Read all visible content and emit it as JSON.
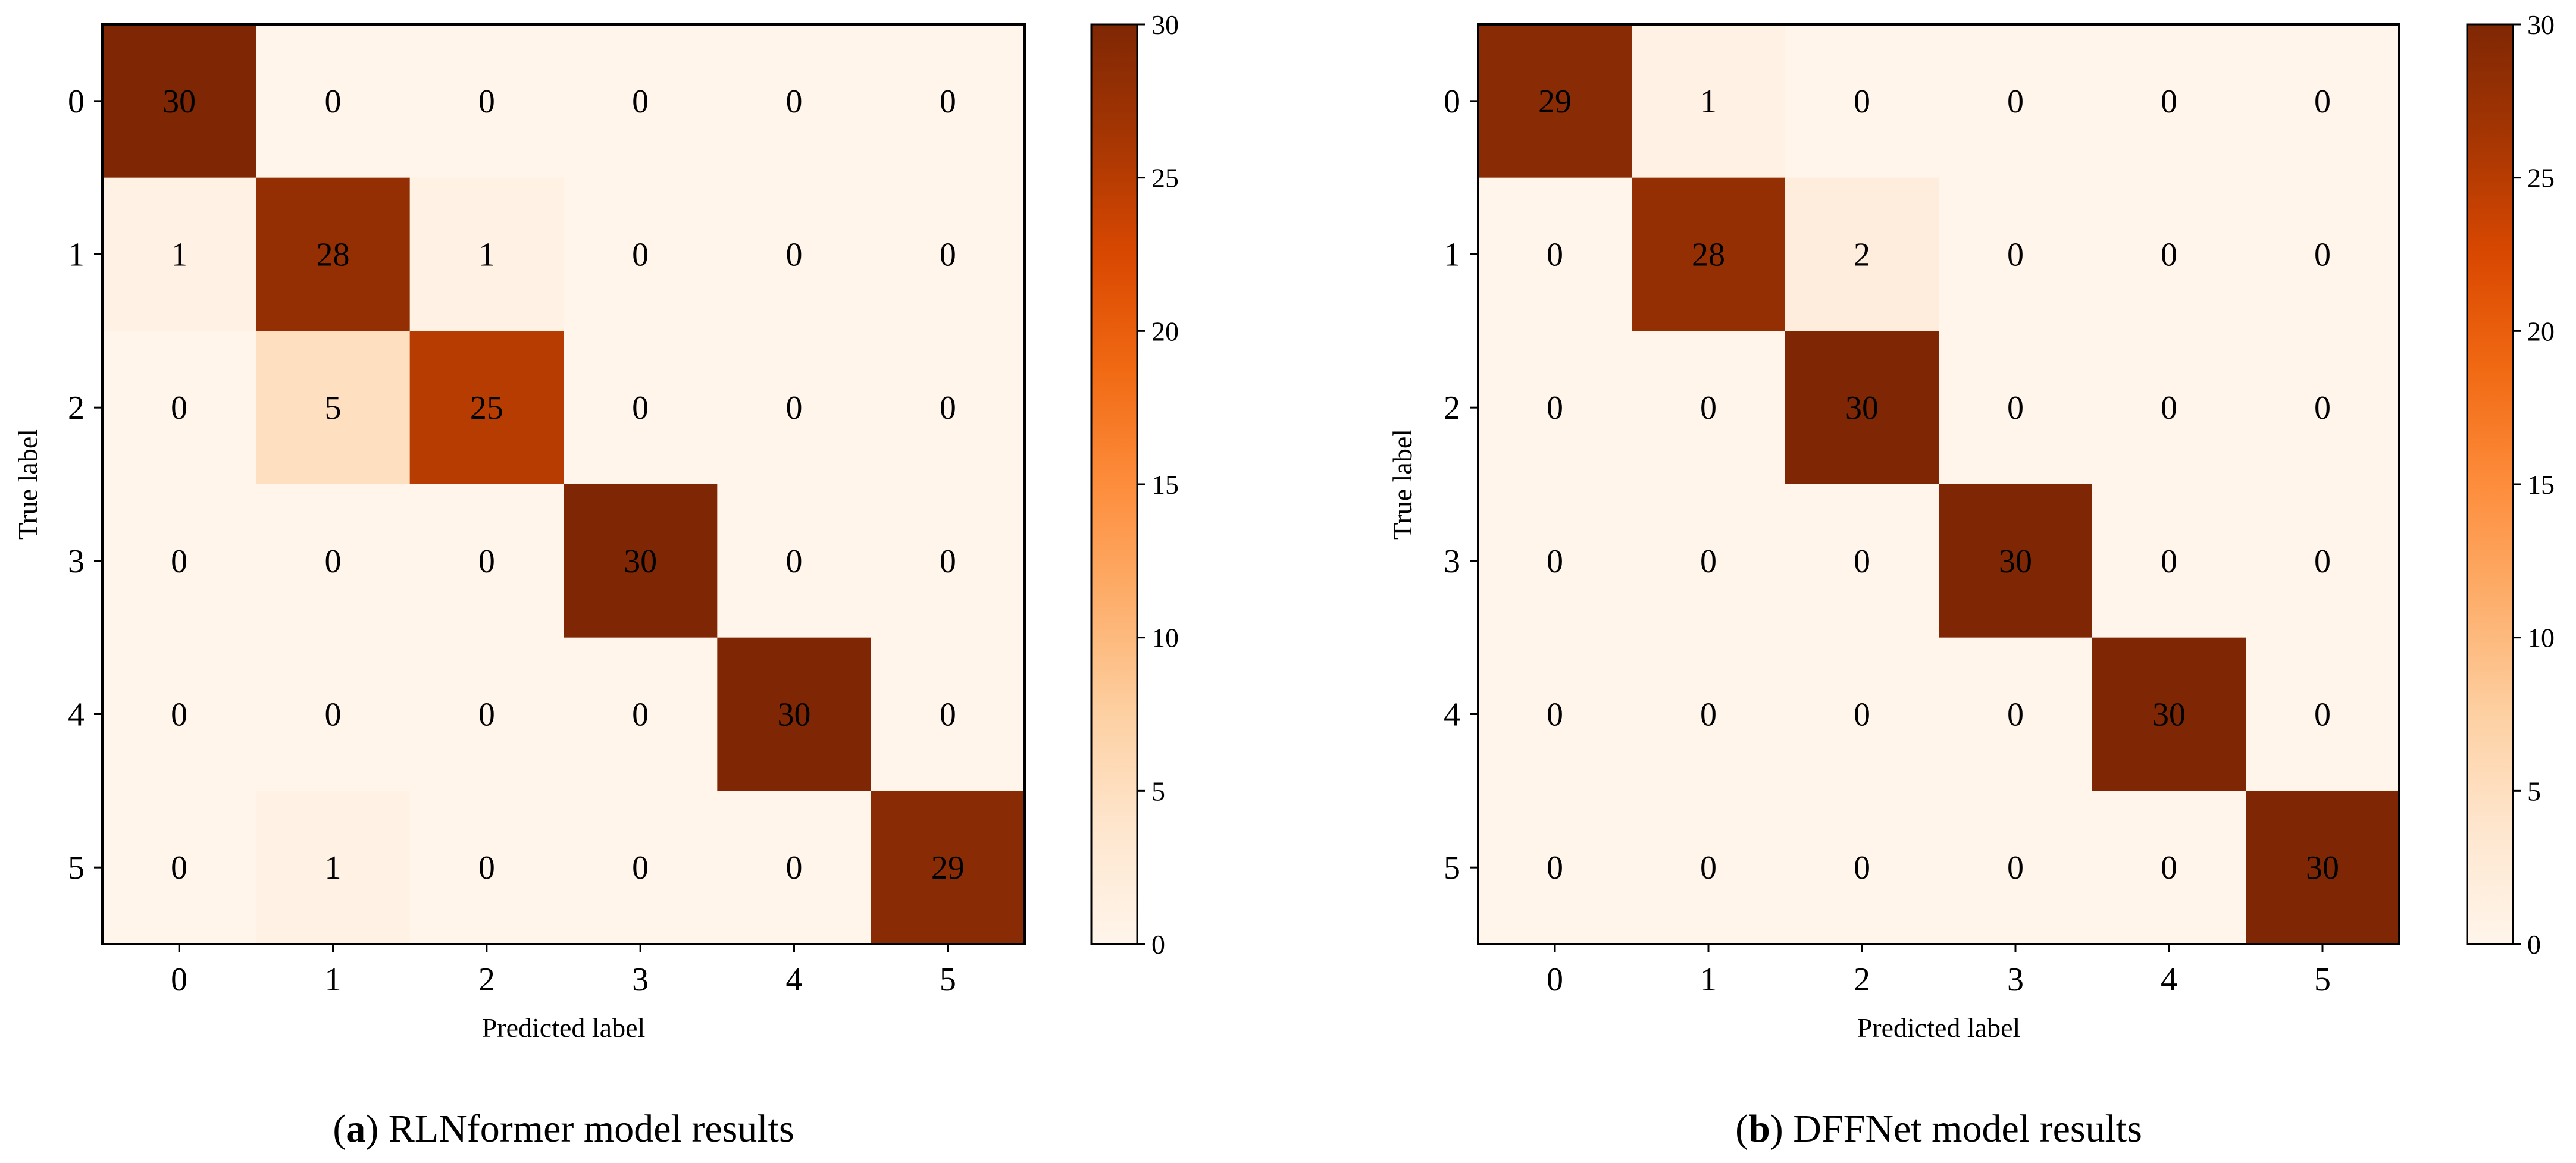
{
  "chart_data": [
    {
      "type": "heatmap",
      "title": "",
      "caption_prefix": "a",
      "caption_text": "RLNformer model results",
      "xlabel": "Predicted label",
      "ylabel": "True label",
      "x_tick_labels": [
        "0",
        "1",
        "2",
        "3",
        "4",
        "5"
      ],
      "y_tick_labels": [
        "0",
        "1",
        "2",
        "3",
        "4",
        "5"
      ],
      "matrix": [
        [
          30,
          0,
          0,
          0,
          0,
          0
        ],
        [
          1,
          28,
          1,
          0,
          0,
          0
        ],
        [
          0,
          5,
          25,
          0,
          0,
          0
        ],
        [
          0,
          0,
          0,
          30,
          0,
          0
        ],
        [
          0,
          0,
          0,
          0,
          30,
          0
        ],
        [
          0,
          1,
          0,
          0,
          0,
          29
        ]
      ],
      "colorbar": {
        "min": 0,
        "max": 30,
        "ticks": [
          0,
          5,
          10,
          15,
          20,
          25,
          30
        ],
        "colormap": "Oranges"
      }
    },
    {
      "type": "heatmap",
      "title": "",
      "caption_prefix": "b",
      "caption_text": "DFFNet model results",
      "xlabel": "Predicted label",
      "ylabel": "True label",
      "x_tick_labels": [
        "0",
        "1",
        "2",
        "3",
        "4",
        "5"
      ],
      "y_tick_labels": [
        "0",
        "1",
        "2",
        "3",
        "4",
        "5"
      ],
      "matrix": [
        [
          29,
          1,
          0,
          0,
          0,
          0
        ],
        [
          0,
          28,
          2,
          0,
          0,
          0
        ],
        [
          0,
          0,
          30,
          0,
          0,
          0
        ],
        [
          0,
          0,
          0,
          30,
          0,
          0
        ],
        [
          0,
          0,
          0,
          0,
          30,
          0
        ],
        [
          0,
          0,
          0,
          0,
          0,
          30
        ]
      ],
      "colorbar": {
        "min": 0,
        "max": 30,
        "ticks": [
          0,
          5,
          10,
          15,
          20,
          25,
          30
        ],
        "colormap": "Oranges"
      }
    }
  ],
  "colors": {
    "cmap_stops": [
      "#fff5eb",
      "#fee6ce",
      "#fdd0a2",
      "#fdae6b",
      "#fd8d3c",
      "#f16913",
      "#d94801",
      "#a63603",
      "#7f2704"
    ]
  }
}
